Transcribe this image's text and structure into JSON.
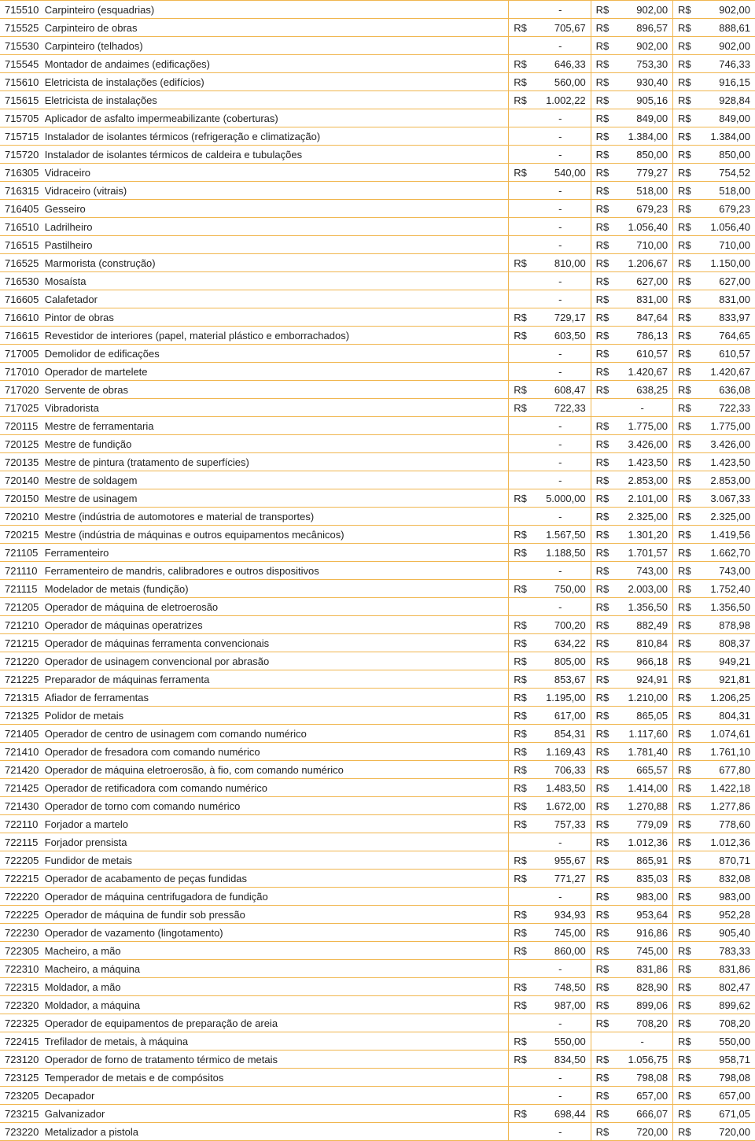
{
  "table": {
    "currency": "R$",
    "colors": {
      "border": "#f0b64f",
      "text": "#222222",
      "background": "#ffffff"
    },
    "font_size": 13,
    "rows": [
      {
        "code": "715510",
        "desc": "Carpinteiro (esquadrias)",
        "v1": null,
        "v2": "902,00",
        "v3": "902,00"
      },
      {
        "code": "715525",
        "desc": "Carpinteiro de obras",
        "v1": "705,67",
        "v2": "896,57",
        "v3": "888,61"
      },
      {
        "code": "715530",
        "desc": "Carpinteiro (telhados)",
        "v1": null,
        "v2": "902,00",
        "v3": "902,00"
      },
      {
        "code": "715545",
        "desc": "Montador de andaimes (edificações)",
        "v1": "646,33",
        "v2": "753,30",
        "v3": "746,33"
      },
      {
        "code": "715610",
        "desc": "Eletricista de instalações (edifícios)",
        "v1": "560,00",
        "v2": "930,40",
        "v3": "916,15"
      },
      {
        "code": "715615",
        "desc": "Eletricista de instalações",
        "v1": "1.002,22",
        "v2": "905,16",
        "v3": "928,84"
      },
      {
        "code": "715705",
        "desc": "Aplicador de asfalto impermeabilizante (coberturas)",
        "v1": null,
        "v2": "849,00",
        "v3": "849,00"
      },
      {
        "code": "715715",
        "desc": "Instalador de isolantes térmicos (refrigeração e climatização)",
        "v1": null,
        "v2": "1.384,00",
        "v3": "1.384,00"
      },
      {
        "code": "715720",
        "desc": "Instalador de isolantes térmicos de caldeira e tubulações",
        "v1": null,
        "v2": "850,00",
        "v3": "850,00"
      },
      {
        "code": "716305",
        "desc": "Vidraceiro",
        "v1": "540,00",
        "v2": "779,27",
        "v3": "754,52"
      },
      {
        "code": "716315",
        "desc": "Vidraceiro (vitrais)",
        "v1": null,
        "v2": "518,00",
        "v3": "518,00"
      },
      {
        "code": "716405",
        "desc": "Gesseiro",
        "v1": null,
        "v2": "679,23",
        "v3": "679,23"
      },
      {
        "code": "716510",
        "desc": "Ladrilheiro",
        "v1": null,
        "v2": "1.056,40",
        "v3": "1.056,40"
      },
      {
        "code": "716515",
        "desc": "Pastilheiro",
        "v1": null,
        "v2": "710,00",
        "v3": "710,00"
      },
      {
        "code": "716525",
        "desc": "Marmorista (construção)",
        "v1": "810,00",
        "v2": "1.206,67",
        "v3": "1.150,00"
      },
      {
        "code": "716530",
        "desc": "Mosaísta",
        "v1": null,
        "v2": "627,00",
        "v3": "627,00"
      },
      {
        "code": "716605",
        "desc": "Calafetador",
        "v1": null,
        "v2": "831,00",
        "v3": "831,00"
      },
      {
        "code": "716610",
        "desc": "Pintor de obras",
        "v1": "729,17",
        "v2": "847,64",
        "v3": "833,97"
      },
      {
        "code": "716615",
        "desc": "Revestidor de interiores (papel, material plástico e emborrachados)",
        "v1": "603,50",
        "v2": "786,13",
        "v3": "764,65"
      },
      {
        "code": "717005",
        "desc": "Demolidor de edificações",
        "v1": null,
        "v2": "610,57",
        "v3": "610,57"
      },
      {
        "code": "717010",
        "desc": "Operador de martelete",
        "v1": null,
        "v2": "1.420,67",
        "v3": "1.420,67"
      },
      {
        "code": "717020",
        "desc": "Servente de obras",
        "v1": "608,47",
        "v2": "638,25",
        "v3": "636,08"
      },
      {
        "code": "717025",
        "desc": "Vibradorista",
        "v1": "722,33",
        "v2": null,
        "v3": "722,33"
      },
      {
        "code": "720115",
        "desc": "Mestre de ferramentaria",
        "v1": null,
        "v2": "1.775,00",
        "v3": "1.775,00"
      },
      {
        "code": "720125",
        "desc": "Mestre de fundição",
        "v1": null,
        "v2": "3.426,00",
        "v3": "3.426,00"
      },
      {
        "code": "720135",
        "desc": "Mestre de pintura (tratamento de superfícies)",
        "v1": null,
        "v2": "1.423,50",
        "v3": "1.423,50"
      },
      {
        "code": "720140",
        "desc": "Mestre de soldagem",
        "v1": null,
        "v2": "2.853,00",
        "v3": "2.853,00"
      },
      {
        "code": "720150",
        "desc": "Mestre de usinagem",
        "v1": "5.000,00",
        "v2": "2.101,00",
        "v3": "3.067,33"
      },
      {
        "code": "720210",
        "desc": "Mestre (indústria de automotores e material de transportes)",
        "v1": null,
        "v2": "2.325,00",
        "v3": "2.325,00"
      },
      {
        "code": "720215",
        "desc": "Mestre (indústria de máquinas e outros equipamentos mecânicos)",
        "v1": "1.567,50",
        "v2": "1.301,20",
        "v3": "1.419,56"
      },
      {
        "code": "721105",
        "desc": "Ferramenteiro",
        "v1": "1.188,50",
        "v2": "1.701,57",
        "v3": "1.662,70"
      },
      {
        "code": "721110",
        "desc": "Ferramenteiro de mandris, calibradores e outros dispositivos",
        "v1": null,
        "v2": "743,00",
        "v3": "743,00"
      },
      {
        "code": "721115",
        "desc": "Modelador de metais (fundição)",
        "v1": "750,00",
        "v2": "2.003,00",
        "v3": "1.752,40"
      },
      {
        "code": "721205",
        "desc": "Operador de máquina de eletroerosão",
        "v1": null,
        "v2": "1.356,50",
        "v3": "1.356,50"
      },
      {
        "code": "721210",
        "desc": "Operador de máquinas operatrizes",
        "v1": "700,20",
        "v2": "882,49",
        "v3": "878,98"
      },
      {
        "code": "721215",
        "desc": "Operador de máquinas ferramenta convencionais",
        "v1": "634,22",
        "v2": "810,84",
        "v3": "808,37"
      },
      {
        "code": "721220",
        "desc": "Operador de usinagem convencional por abrasão",
        "v1": "805,00",
        "v2": "966,18",
        "v3": "949,21"
      },
      {
        "code": "721225",
        "desc": "Preparador de máquinas ferramenta",
        "v1": "853,67",
        "v2": "924,91",
        "v3": "921,81"
      },
      {
        "code": "721315",
        "desc": "Afiador de ferramentas",
        "v1": "1.195,00",
        "v2": "1.210,00",
        "v3": "1.206,25"
      },
      {
        "code": "721325",
        "desc": "Polidor de metais",
        "v1": "617,00",
        "v2": "865,05",
        "v3": "804,31"
      },
      {
        "code": "721405",
        "desc": "Operador de centro de usinagem com comando numérico",
        "v1": "854,31",
        "v2": "1.117,60",
        "v3": "1.074,61"
      },
      {
        "code": "721410",
        "desc": "Operador de fresadora com comando numérico",
        "v1": "1.169,43",
        "v2": "1.781,40",
        "v3": "1.761,10"
      },
      {
        "code": "721420",
        "desc": "Operador de máquina eletroerosão, à fio, com comando numérico",
        "v1": "706,33",
        "v2": "665,57",
        "v3": "677,80"
      },
      {
        "code": "721425",
        "desc": "Operador de retificadora com comando numérico",
        "v1": "1.483,50",
        "v2": "1.414,00",
        "v3": "1.422,18"
      },
      {
        "code": "721430",
        "desc": "Operador de torno com comando numérico",
        "v1": "1.672,00",
        "v2": "1.270,88",
        "v3": "1.277,86"
      },
      {
        "code": "722110",
        "desc": "Forjador a martelo",
        "v1": "757,33",
        "v2": "779,09",
        "v3": "778,60"
      },
      {
        "code": "722115",
        "desc": "Forjador prensista",
        "v1": null,
        "v2": "1.012,36",
        "v3": "1.012,36"
      },
      {
        "code": "722205",
        "desc": "Fundidor de metais",
        "v1": "955,67",
        "v2": "865,91",
        "v3": "870,71"
      },
      {
        "code": "722215",
        "desc": "Operador de acabamento de peças fundidas",
        "v1": "771,27",
        "v2": "835,03",
        "v3": "832,08"
      },
      {
        "code": "722220",
        "desc": "Operador de máquina centrifugadora de fundição",
        "v1": null,
        "v2": "983,00",
        "v3": "983,00"
      },
      {
        "code": "722225",
        "desc": "Operador de máquina de fundir sob pressão",
        "v1": "934,93",
        "v2": "953,64",
        "v3": "952,28"
      },
      {
        "code": "722230",
        "desc": "Operador de vazamento (lingotamento)",
        "v1": "745,00",
        "v2": "916,86",
        "v3": "905,40"
      },
      {
        "code": "722305",
        "desc": "Macheiro, a mão",
        "v1": "860,00",
        "v2": "745,00",
        "v3": "783,33"
      },
      {
        "code": "722310",
        "desc": "Macheiro, a máquina",
        "v1": null,
        "v2": "831,86",
        "v3": "831,86"
      },
      {
        "code": "722315",
        "desc": "Moldador, a mão",
        "v1": "748,50",
        "v2": "828,90",
        "v3": "802,47"
      },
      {
        "code": "722320",
        "desc": "Moldador, a máquina",
        "v1": "987,00",
        "v2": "899,06",
        "v3": "899,62"
      },
      {
        "code": "722325",
        "desc": "Operador de equipamentos de preparação de areia",
        "v1": null,
        "v2": "708,20",
        "v3": "708,20"
      },
      {
        "code": "722415",
        "desc": "Trefilador de metais, à máquina",
        "v1": "550,00",
        "v2": null,
        "v3": "550,00"
      },
      {
        "code": "723120",
        "desc": "Operador de forno de tratamento térmico de metais",
        "v1": "834,50",
        "v2": "1.056,75",
        "v3": "958,71"
      },
      {
        "code": "723125",
        "desc": "Temperador de metais e de compósitos",
        "v1": null,
        "v2": "798,08",
        "v3": "798,08"
      },
      {
        "code": "723205",
        "desc": "Decapador",
        "v1": null,
        "v2": "657,00",
        "v3": "657,00"
      },
      {
        "code": "723215",
        "desc": "Galvanizador",
        "v1": "698,44",
        "v2": "666,07",
        "v3": "671,05"
      },
      {
        "code": "723220",
        "desc": "Metalizador a pistola",
        "v1": null,
        "v2": "720,00",
        "v3": "720,00"
      }
    ]
  }
}
